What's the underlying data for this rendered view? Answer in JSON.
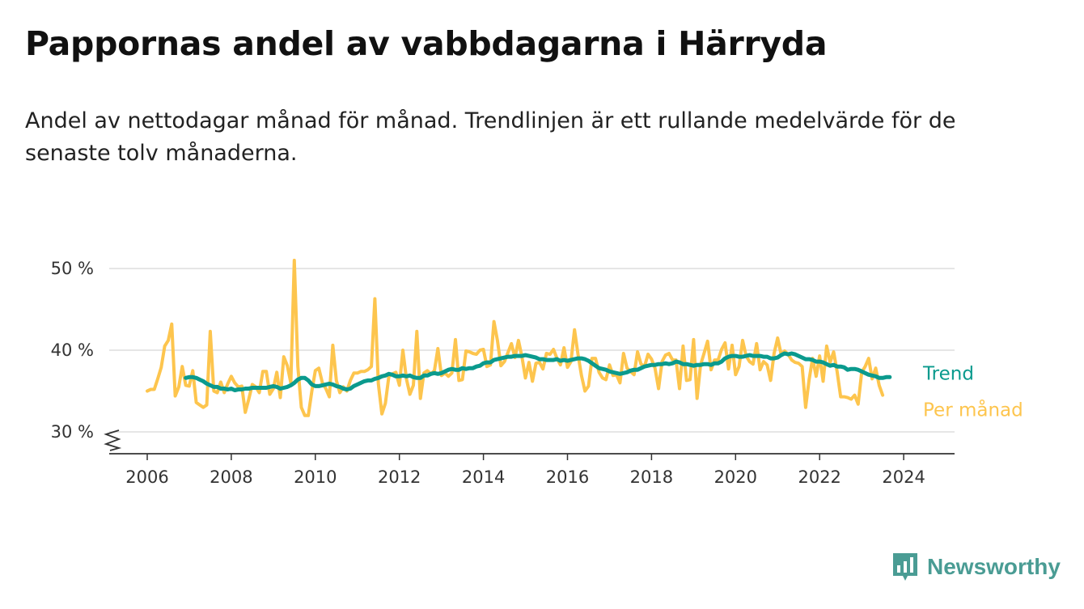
{
  "title": "Pappornas andel av vabbdagarna i Härryda",
  "subtitle": "Andel av nettodagar månad för månad. Trendlinjen är ett rullande medelvärde för de senaste tolv månaderna.",
  "brand": {
    "name": "Newsworthy",
    "color": "#4a9c94"
  },
  "colors": {
    "monthly": "#fdc54e",
    "trend": "#0a9a8d",
    "grid": "#dddddd",
    "axis": "#333333"
  },
  "chart_data": {
    "type": "line",
    "title": "Pappornas andel av vabbdagarna i Härryda",
    "xlabel": "",
    "ylabel": "",
    "x_ticks": [
      "2006",
      "2008",
      "2010",
      "2012",
      "2014",
      "2016",
      "2018",
      "2020",
      "2022",
      "2024"
    ],
    "y_ticks": [
      {
        "value": 30,
        "label": "30 %"
      },
      {
        "value": 40,
        "label": "40 %"
      },
      {
        "value": 50,
        "label": "50 %"
      }
    ],
    "ylim": [
      30,
      50
    ],
    "y_axis_broken": true,
    "grid": "horizontal",
    "legend": "end-of-line labels",
    "series": [
      {
        "name": "Per månad",
        "x_start": "2006-01",
        "frequency": "monthly",
        "values": [
          35.0,
          35.2,
          35.2,
          36.5,
          37.9,
          40.5,
          41.2,
          43.2,
          34.4,
          35.5,
          38.0,
          35.7,
          35.6,
          37.5,
          33.6,
          33.3,
          33.0,
          33.3,
          42.3,
          35.0,
          34.8,
          36.1,
          34.8,
          35.9,
          36.8,
          36.0,
          35.5,
          35.6,
          32.4,
          34.0,
          35.8,
          35.5,
          34.8,
          37.4,
          37.4,
          34.6,
          35.3,
          37.3,
          34.2,
          39.2,
          38.1,
          36.0,
          51.0,
          38.0,
          33.0,
          32.0,
          32.0,
          35.0,
          37.5,
          37.8,
          36.0,
          35.3,
          34.3,
          40.6,
          36.3,
          34.8,
          35.5,
          35.0,
          36.3,
          37.2,
          37.2,
          37.4,
          37.4,
          37.6,
          38.0,
          46.3,
          35.9,
          32.2,
          33.5,
          36.8,
          37.1,
          37.3,
          35.7,
          40.0,
          36.5,
          34.6,
          35.7,
          42.3,
          34.1,
          37.2,
          37.5,
          37.1,
          37.5,
          40.2,
          36.9,
          37.2,
          36.8,
          37.2,
          41.3,
          36.3,
          36.4,
          39.9,
          39.8,
          39.6,
          39.5,
          40.0,
          40.1,
          38.0,
          38.2,
          43.5,
          41.2,
          38.1,
          38.6,
          39.7,
          40.8,
          39.1,
          41.2,
          39.2,
          36.6,
          38.5,
          36.2,
          38.4,
          38.5,
          37.7,
          39.6,
          39.5,
          40.1,
          39.0,
          38.2,
          40.3,
          37.9,
          38.6,
          42.5,
          39.5,
          36.9,
          35.0,
          35.6,
          39.0,
          39.0,
          37.3,
          36.6,
          36.4,
          38.2,
          36.9,
          37.0,
          36.0,
          39.6,
          37.8,
          37.4,
          37.0,
          39.8,
          38.3,
          38.0,
          39.5,
          38.9,
          37.8,
          35.3,
          38.6,
          39.4,
          39.6,
          38.8,
          38.8,
          35.3,
          40.5,
          36.3,
          36.4,
          41.3,
          34.1,
          38.2,
          39.6,
          41.1,
          37.6,
          38.8,
          38.8,
          40.1,
          40.9,
          37.7,
          40.6,
          37.0,
          38.0,
          41.2,
          39.3,
          38.6,
          38.3,
          40.8,
          37.6,
          38.6,
          38.2,
          36.3,
          39.6,
          41.5,
          39.5,
          39.9,
          39.5,
          38.8,
          38.5,
          38.4,
          38.0,
          33.0,
          36.4,
          39.0,
          36.8,
          39.3,
          36.2,
          40.5,
          38.5,
          39.8,
          37.4,
          34.3,
          34.3,
          34.2,
          34.0,
          34.5,
          33.4,
          37.3,
          38.0,
          39.0,
          36.5,
          37.8,
          35.7,
          34.5
        ]
      },
      {
        "name": "Trend",
        "x_start": "2006-12",
        "frequency": "monthly",
        "values": [
          36.6,
          36.7,
          36.7,
          36.6,
          36.4,
          36.2,
          35.9,
          35.7,
          35.5,
          35.5,
          35.3,
          35.3,
          35.2,
          35.3,
          35.1,
          35.2,
          35.2,
          35.3,
          35.3,
          35.4,
          35.4,
          35.4,
          35.4,
          35.4,
          35.5,
          35.6,
          35.5,
          35.3,
          35.4,
          35.5,
          35.7,
          36.0,
          36.4,
          36.6,
          36.6,
          36.3,
          35.8,
          35.6,
          35.6,
          35.7,
          35.8,
          35.9,
          35.8,
          35.6,
          35.5,
          35.3,
          35.2,
          35.3,
          35.6,
          35.8,
          36.0,
          36.2,
          36.3,
          36.3,
          36.5,
          36.6,
          36.8,
          36.9,
          37.1,
          37.0,
          36.8,
          36.8,
          36.9,
          36.8,
          36.9,
          36.7,
          36.6,
          36.6,
          36.9,
          36.9,
          37.1,
          37.2,
          37.1,
          37.2,
          37.4,
          37.6,
          37.7,
          37.6,
          37.6,
          37.8,
          37.7,
          37.8,
          37.8,
          38.0,
          38.1,
          38.4,
          38.5,
          38.5,
          38.8,
          38.9,
          39.0,
          39.1,
          39.2,
          39.2,
          39.3,
          39.3,
          39.3,
          39.4,
          39.3,
          39.2,
          39.1,
          38.9,
          38.9,
          38.8,
          38.8,
          38.8,
          38.9,
          38.7,
          38.8,
          38.7,
          38.8,
          38.9,
          39.0,
          39.0,
          38.9,
          38.7,
          38.4,
          38.1,
          37.8,
          37.7,
          37.6,
          37.4,
          37.3,
          37.2,
          37.1,
          37.2,
          37.3,
          37.5,
          37.6,
          37.6,
          37.8,
          38.0,
          38.1,
          38.2,
          38.2,
          38.3,
          38.3,
          38.4,
          38.3,
          38.4,
          38.6,
          38.5,
          38.3,
          38.3,
          38.2,
          38.1,
          38.2,
          38.2,
          38.3,
          38.3,
          38.2,
          38.4,
          38.4,
          38.6,
          39.0,
          39.2,
          39.3,
          39.3,
          39.2,
          39.2,
          39.3,
          39.4,
          39.3,
          39.3,
          39.3,
          39.2,
          39.2,
          39.0,
          39.0,
          39.1,
          39.4,
          39.6,
          39.5,
          39.6,
          39.5,
          39.3,
          39.1,
          38.9,
          38.9,
          38.8,
          38.6,
          38.6,
          38.5,
          38.3,
          38.1,
          38.2,
          38.0,
          38.0,
          37.9,
          37.6,
          37.7,
          37.7,
          37.6,
          37.4,
          37.2,
          37.0,
          36.9,
          36.8,
          36.6,
          36.6,
          36.7,
          36.7
        ]
      }
    ]
  }
}
